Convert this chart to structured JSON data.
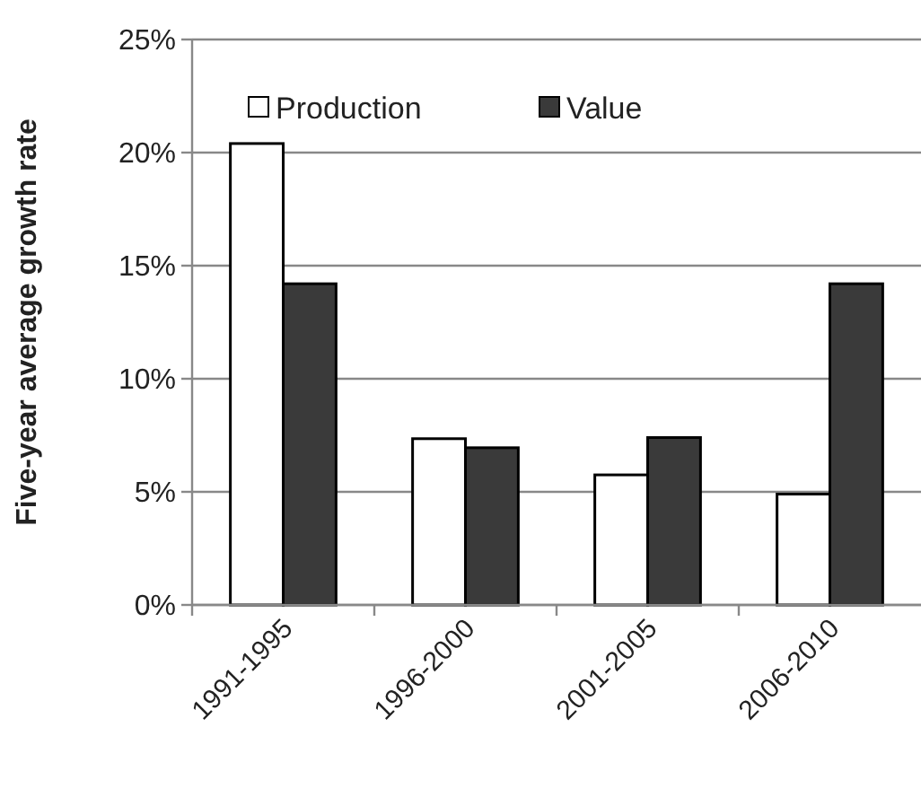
{
  "chart_data": {
    "type": "bar",
    "ylabel": "Five-year average growth rate",
    "categories": [
      "1991-1995",
      "1996-2000",
      "2001-2005",
      "2006-2010"
    ],
    "series": [
      {
        "name": "Production",
        "color": "#ffffff",
        "values": [
          20.4,
          7.35,
          5.75,
          4.9
        ]
      },
      {
        "name": "Value",
        "color": "#3a3a3a",
        "values": [
          14.2,
          6.95,
          7.4,
          14.2
        ]
      }
    ],
    "ylim": [
      0,
      25
    ],
    "yticks": [
      {
        "value": 0,
        "label": "0%"
      },
      {
        "value": 5,
        "label": "5%"
      },
      {
        "value": 10,
        "label": "10%"
      },
      {
        "value": 15,
        "label": "15%"
      },
      {
        "value": 20,
        "label": "20%"
      },
      {
        "value": 25,
        "label": "25%"
      }
    ],
    "grid": "y",
    "legend": "top"
  }
}
